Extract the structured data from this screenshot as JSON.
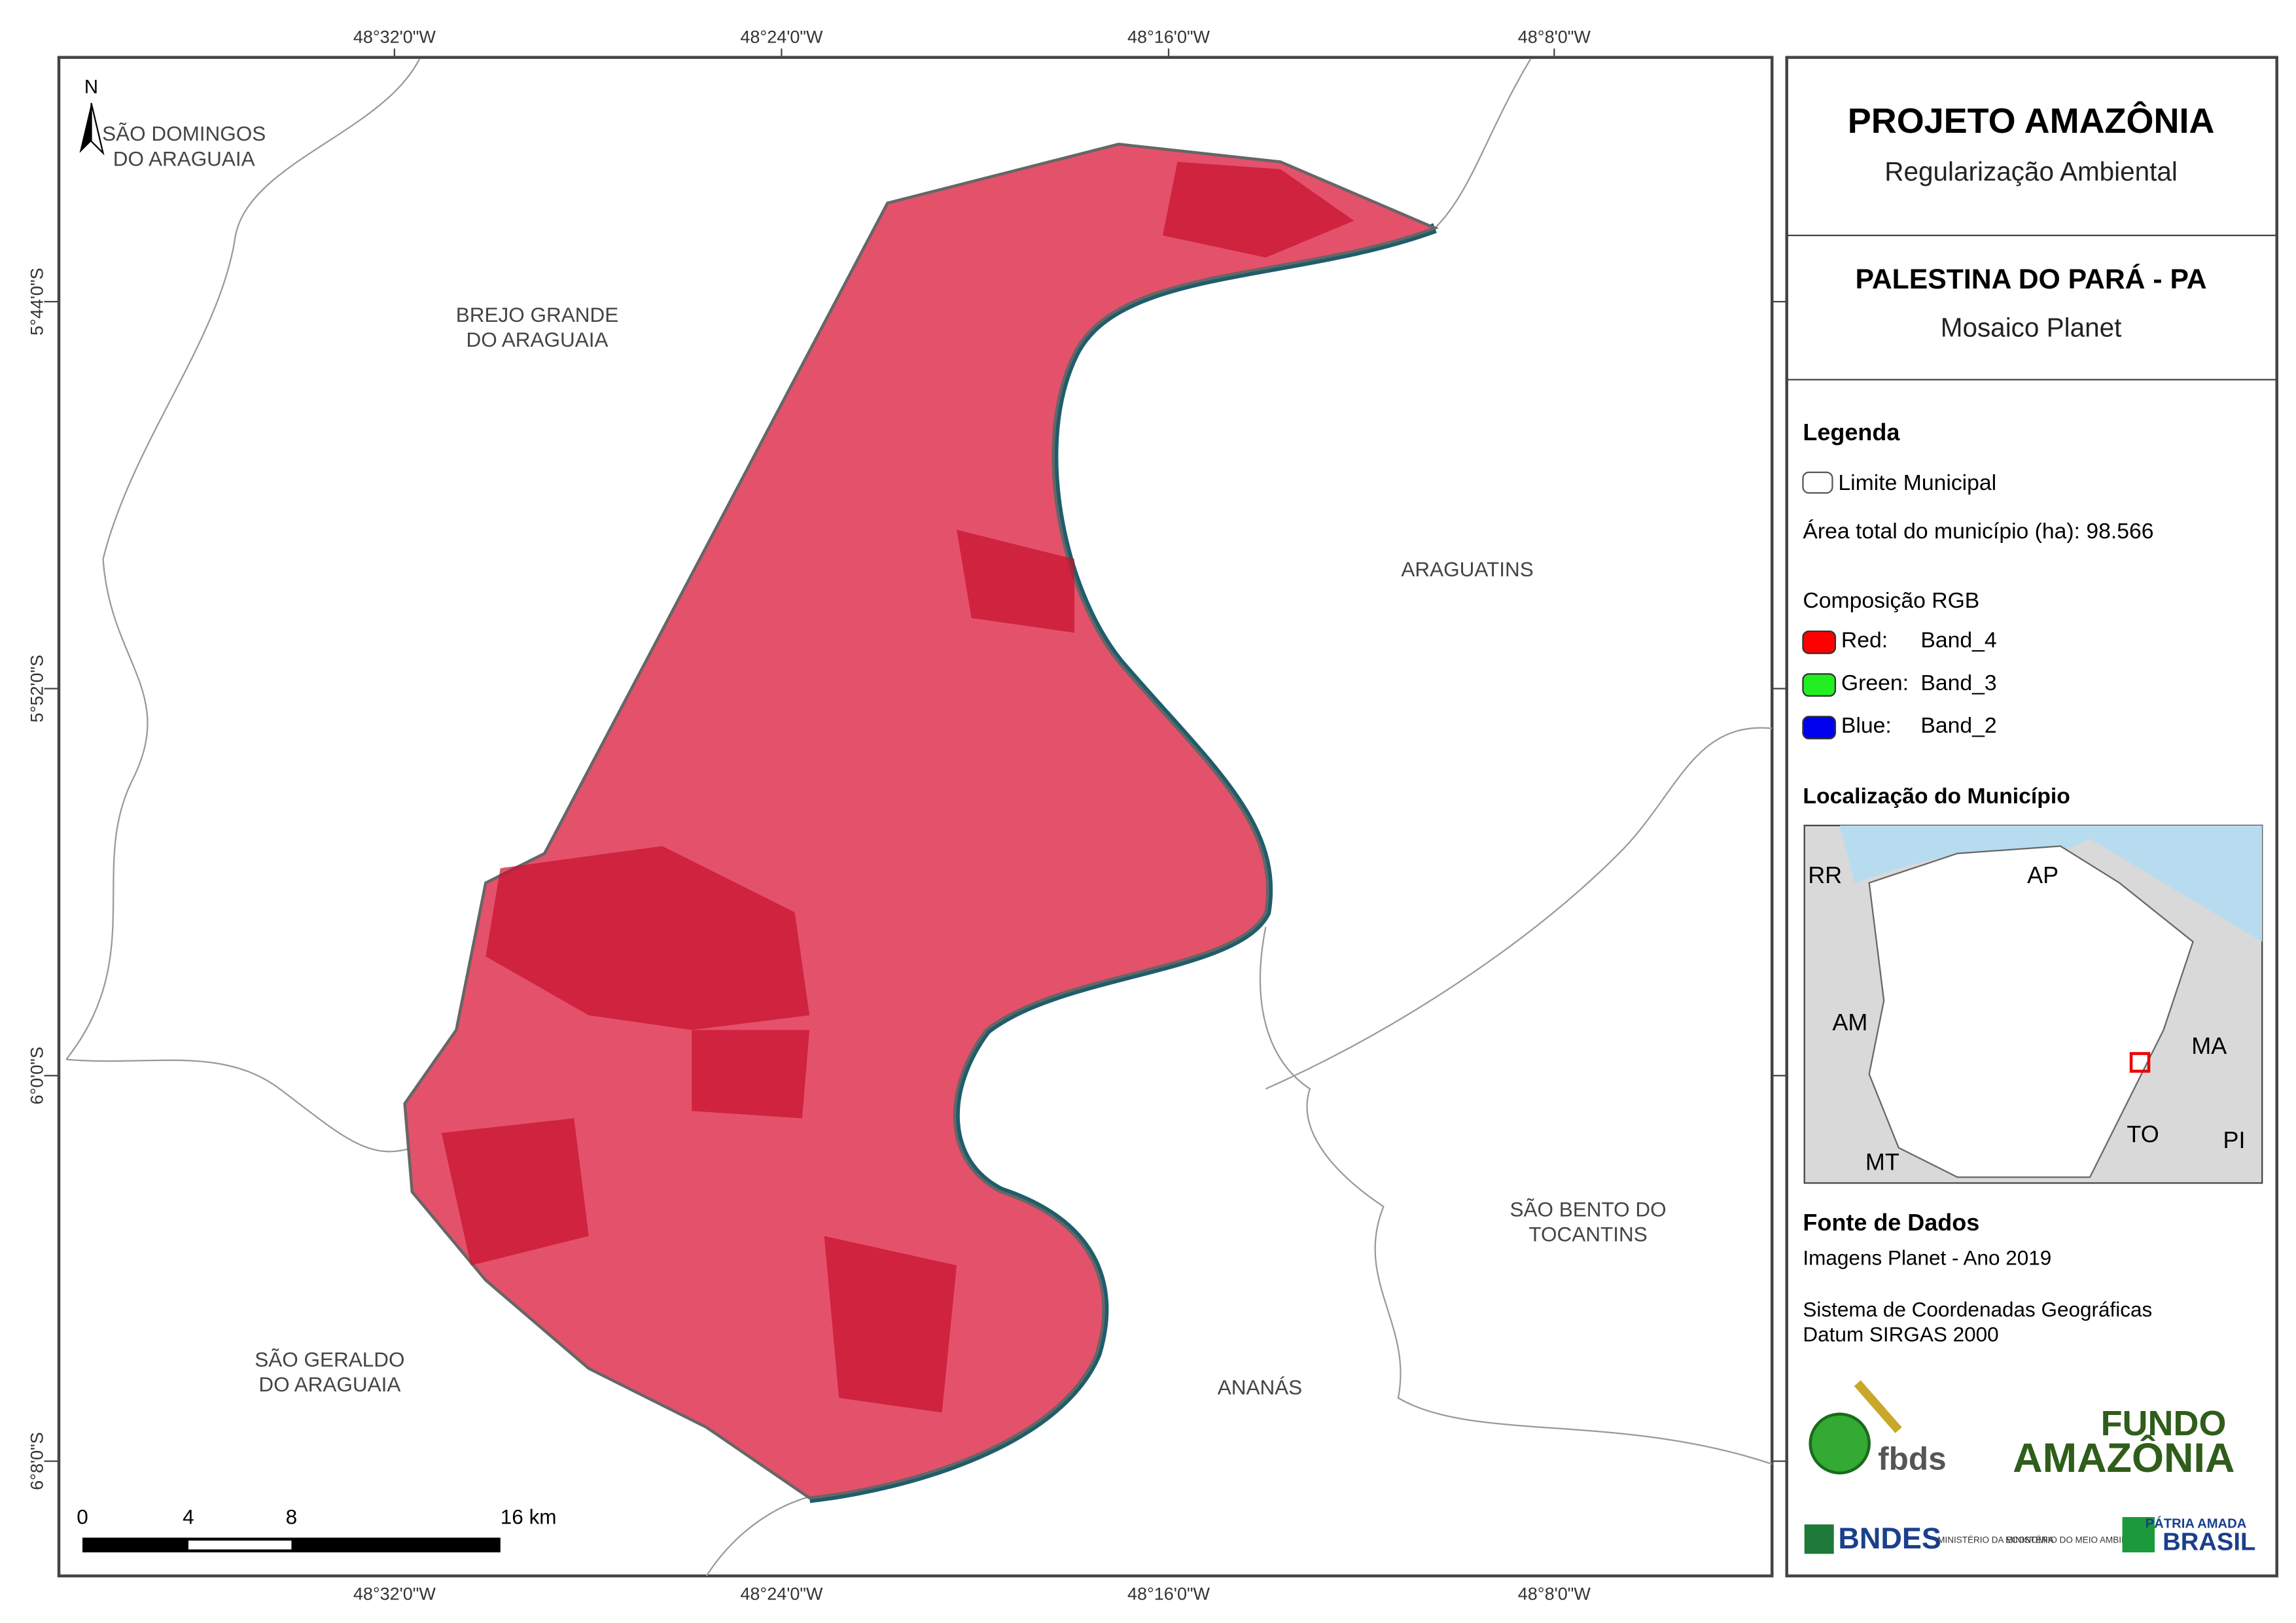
{
  "map": {
    "lon_labels": [
      "48°32'0\"W",
      "48°24'0\"W",
      "48°16'0\"W",
      "48°8'0\"W"
    ],
    "lat_labels": [
      "5°44'0\"S",
      "5°52'0\"S",
      "6°0'0\"S",
      "6°8'0\"S"
    ],
    "north": "N",
    "places": [
      {
        "lines": [
          "SÃO DOMINGOS",
          "DO ARAGUAIA"
        ]
      },
      {
        "lines": [
          "BREJO GRANDE",
          "DO ARAGUAIA"
        ]
      },
      {
        "lines": [
          "ARAGUATINS"
        ]
      },
      {
        "lines": [
          "SÃO BENTO DO",
          "TOCANTINS"
        ]
      },
      {
        "lines": [
          "ANANÁS"
        ]
      },
      {
        "lines": [
          "SÃO GERALDO",
          "DO ARAGUAIA"
        ]
      }
    ],
    "scale": [
      "0",
      "4",
      "8",
      "16 km"
    ]
  },
  "panel": {
    "title": "PROJETO AMAZÔNIA",
    "subtitle": "Regularização Ambiental",
    "municipality": "PALESTINA DO PARÁ - PA",
    "product": "Mosaico Planet",
    "legend": {
      "title": "Legenda",
      "limit": "Limite Municipal",
      "area": "Área total do município (ha): 98.566",
      "rgb_title": "Composição RGB",
      "bands": [
        {
          "channel": "Red:",
          "band": "Band_4",
          "color": "#ff0000"
        },
        {
          "channel": "Green:",
          "band": "Band_3",
          "color": "#22ee22"
        },
        {
          "channel": "Blue:",
          "band": "Band_2",
          "color": "#0000ee"
        }
      ]
    },
    "location": {
      "title": "Localização do Município",
      "states": [
        "RR",
        "AP",
        "AM",
        "MA",
        "TO",
        "MT",
        "PI"
      ]
    },
    "sources": {
      "title": "Fonte de Dados",
      "lines": [
        "Imagens Planet - Ano 2019",
        "Sistema de Coordenadas Geográficas",
        "Datum SIRGAS 2000"
      ]
    },
    "logos": [
      "fbds",
      "FUNDO",
      "AMAZÔNIA",
      "BNDES",
      "MINISTÉRIO DA ECONOMIA",
      "MINISTÉRIO DO MEIO AMBIENTE",
      "PÁTRIA AMADA",
      "BRASIL"
    ]
  }
}
